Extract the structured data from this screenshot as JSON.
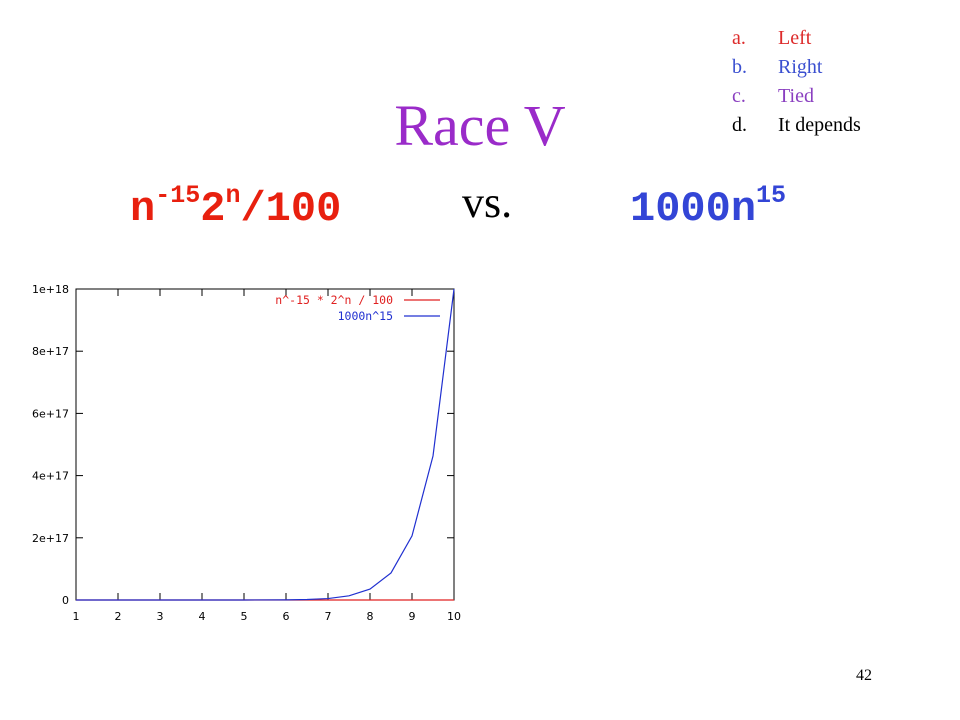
{
  "title": "Race V",
  "title_color": "#9a2bc9",
  "choices": [
    {
      "letter": "a.",
      "text": "Left",
      "color": "#dd2b2b"
    },
    {
      "letter": "b.",
      "text": "Right",
      "color": "#3a4fd0"
    },
    {
      "letter": "c.",
      "text": "Tied",
      "color": "#8a3fc0"
    },
    {
      "letter": "d.",
      "text": "It depends",
      "color": "#000000"
    }
  ],
  "left_formula": {
    "base1": "n",
    "exp1": "-15",
    "base2": "2",
    "exp2": "n",
    "suffix": "/100",
    "color": "#e8200f"
  },
  "vs_label": "vs.",
  "right_formula": {
    "base": "1000n",
    "exp": "15",
    "color": "#3345d6"
  },
  "page_number": "42",
  "chart_data": {
    "type": "line",
    "xlim": [
      1,
      10
    ],
    "ylim": [
      0,
      1e+18
    ],
    "x_ticks": [
      1,
      2,
      3,
      4,
      5,
      6,
      7,
      8,
      9,
      10
    ],
    "x_tick_labels": [
      "1",
      "2",
      "3",
      "4",
      "5",
      "6",
      "7",
      "8",
      "9",
      "10"
    ],
    "y_ticks": [
      0,
      2e+17,
      4e+17,
      6e+17,
      8e+17,
      1e+18
    ],
    "y_tick_labels": [
      "0",
      "2e+17",
      "4e+17",
      "6e+17",
      "8e+17",
      "1e+18"
    ],
    "grid": false,
    "legend_position": "top-right",
    "series": [
      {
        "name": "n^-15 * 2^n / 100",
        "color": "#e02020",
        "x": [
          1,
          2,
          3,
          4,
          5,
          6,
          7,
          8,
          9,
          10
        ],
        "y": [
          0,
          0,
          0,
          0,
          0,
          0,
          0,
          0,
          0,
          0
        ]
      },
      {
        "name": "1000n^15",
        "color": "#2030d0",
        "x": [
          1,
          2,
          3,
          4,
          5,
          6,
          6.5,
          7,
          7.5,
          8,
          8.5,
          9,
          9.5,
          10
        ],
        "y": [
          1000.0,
          33000000.0,
          14000000000.0,
          1100000000000.0,
          31000000000000.0,
          470000000000000.0,
          1500000000000000.0,
          4700000000000000.0,
          1.34e+16,
          3.5e+16,
          8.7e+16,
          2.06e+17,
          4.63e+17,
          1e+18
        ]
      }
    ]
  }
}
